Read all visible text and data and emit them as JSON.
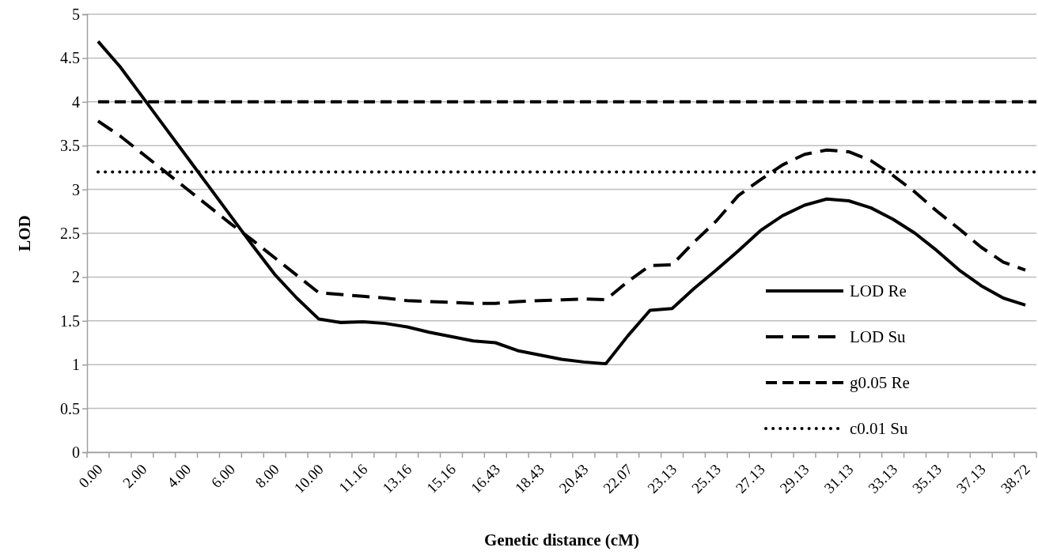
{
  "chart_data": {
    "type": "line",
    "xlabel": "Genetic distance (cM)",
    "ylabel": "LOD",
    "categories": [
      "0.00",
      null,
      "2.00",
      null,
      "4.00",
      null,
      "6.00",
      null,
      "8.00",
      null,
      "10.00",
      null,
      "11.16",
      null,
      "13.16",
      null,
      "15.16",
      null,
      "16.43",
      null,
      "18.43",
      null,
      "20.43",
      null,
      "22.07",
      null,
      "23.13",
      null,
      "25.13",
      null,
      "27.13",
      null,
      "29.13",
      null,
      "31.13",
      null,
      "33.13",
      null,
      "35.13",
      null,
      "37.13",
      null,
      "38.72"
    ],
    "series": [
      {
        "name": "LOD Re",
        "color": "#000000",
        "line_style": "solid",
        "values": [
          4.69,
          4.4,
          4.06,
          3.72,
          3.38,
          3.04,
          2.7,
          2.36,
          2.03,
          1.76,
          1.52,
          1.48,
          1.49,
          1.47,
          1.43,
          1.37,
          1.32,
          1.27,
          1.25,
          1.16,
          1.11,
          1.06,
          1.03,
          1.01,
          1.33,
          1.62,
          1.64,
          1.87,
          2.08,
          2.3,
          2.53,
          2.7,
          2.82,
          2.89,
          2.87,
          2.79,
          2.66,
          2.5,
          2.3,
          2.08,
          1.9,
          1.76,
          1.68
        ]
      },
      {
        "name": "LOD Su",
        "color": "#000000",
        "line_style": "dashed",
        "values": [
          3.78,
          3.61,
          3.41,
          3.21,
          3.01,
          2.81,
          2.61,
          2.42,
          2.22,
          2.02,
          1.82,
          1.8,
          1.78,
          1.76,
          1.73,
          1.72,
          1.71,
          1.7,
          1.7,
          1.72,
          1.73,
          1.74,
          1.75,
          1.74,
          1.95,
          2.13,
          2.14,
          2.4,
          2.64,
          2.93,
          3.11,
          3.28,
          3.4,
          3.45,
          3.43,
          3.33,
          3.16,
          2.97,
          2.75,
          2.55,
          2.34,
          2.17,
          2.08
        ]
      }
    ],
    "ref_lines": [
      {
        "axis": "y",
        "value": 4,
        "label": "g0.05 Re",
        "color": "#000000",
        "line_style": "dashed"
      },
      {
        "axis": "y",
        "value": 3.2,
        "label": "c0.01 Su",
        "color": "#000000",
        "line_style": "dotted"
      }
    ],
    "ylim": [
      0,
      5
    ],
    "yticks": [
      0,
      0.5,
      1,
      1.5,
      2,
      2.5,
      3,
      3.5,
      4,
      4.5,
      5
    ],
    "grid": "y",
    "legend": "bottom right",
    "marker": "none"
  }
}
